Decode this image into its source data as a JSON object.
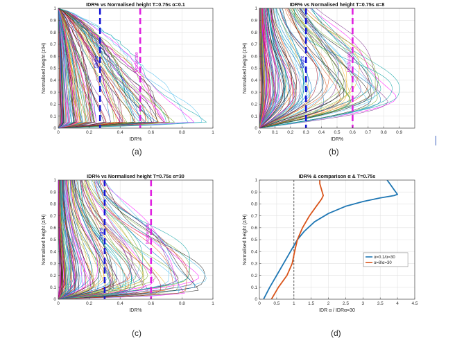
{
  "captions": [
    "(a)",
    "(b)",
    "(c)",
    "(d)"
  ],
  "colors": {
    "slight": "#1515d6",
    "moderate": "#e020e0",
    "series_blue": "#1f77b4",
    "series_orange": "#d95319",
    "palette": [
      "#0072bd",
      "#d95319",
      "#edb120",
      "#7e2f8e",
      "#77ac30",
      "#4dbeee",
      "#a2142f",
      "#1a1a1a",
      "#ff00ff",
      "#00a0a0"
    ]
  },
  "chart_data": [
    {
      "type": "line",
      "title": "IDR% vs Normalised height T=0.75s α=0.1",
      "xlabel": "IDR%",
      "ylabel": "Normalised height (z/H)",
      "xlim": [
        0,
        1
      ],
      "ylim": [
        0,
        1
      ],
      "xticks": [
        0,
        0.2,
        0.4,
        0.6,
        0.8,
        1
      ],
      "xtick_labels": [
        "0",
        "0.2",
        "0.4",
        "0.6",
        "0.8",
        "1"
      ],
      "yticks": [
        0,
        0.1,
        0.2,
        0.3,
        0.4,
        0.5,
        0.6,
        0.7,
        0.8,
        0.9,
        1
      ],
      "ytick_labels": [
        "0",
        "0.1",
        "0.2",
        "0.3",
        "0.4",
        "0.5",
        "0.6",
        "0.7",
        "0.8",
        "0.9",
        "1"
      ],
      "grid": true,
      "curve_count": 150,
      "curve_shape": "decreasing",
      "max_idr": 0.92,
      "thresholds": [
        {
          "name": "Slight",
          "x": 0.27
        },
        {
          "name": "Moderate",
          "x": 0.53
        }
      ]
    },
    {
      "type": "line",
      "title": "IDR% vs Normalised height T=0.75s α=8",
      "xlabel": "IDR%",
      "ylabel": "Normalised height (z/H)",
      "xlim": [
        0,
        1
      ],
      "ylim": [
        0,
        1
      ],
      "xticks": [
        0,
        0.1,
        0.2,
        0.3,
        0.4,
        0.5,
        0.6,
        0.7,
        0.8,
        0.9
      ],
      "xtick_labels": [
        "0",
        "0.1",
        "0.2",
        "0.3",
        "0.4",
        "0.5",
        "0.6",
        "0.7",
        "0.8",
        "0.9"
      ],
      "yticks": [
        0,
        0.1,
        0.2,
        0.3,
        0.4,
        0.5,
        0.6,
        0.7,
        0.8,
        0.9,
        1
      ],
      "ytick_labels": [
        "0",
        "0.1",
        "0.2",
        "0.3",
        "0.4",
        "0.5",
        "0.6",
        "0.7",
        "0.8",
        "0.9",
        "1"
      ],
      "grid": true,
      "curve_count": 150,
      "curve_shape": "bulge",
      "peak_height": 0.3,
      "max_idr": 0.87,
      "thresholds": [
        {
          "name": "Slight",
          "x": 0.3
        },
        {
          "name": "Moderate",
          "x": 0.6
        }
      ]
    },
    {
      "type": "line",
      "title": "IDR% vs Normalised height T=0.75s α=30",
      "xlabel": "IDR%",
      "ylabel": "Normalised height (z/H)",
      "xlim": [
        0,
        1
      ],
      "ylim": [
        0,
        1
      ],
      "xticks": [
        0,
        0.2,
        0.4,
        0.6,
        0.8,
        1
      ],
      "xtick_labels": [
        "0",
        "0.2",
        "0.4",
        "0.6",
        "0.8",
        "1"
      ],
      "yticks": [
        0,
        0.1,
        0.2,
        0.3,
        0.4,
        0.5,
        0.6,
        0.7,
        0.8,
        0.9,
        1
      ],
      "ytick_labels": [
        "0",
        "0.1",
        "0.2",
        "0.3",
        "0.4",
        "0.5",
        "0.6",
        "0.7",
        "0.8",
        "0.9",
        "1"
      ],
      "grid": true,
      "curve_count": 150,
      "curve_shape": "bulge",
      "peak_height": 0.12,
      "max_idr": 0.93,
      "thresholds": [
        {
          "name": "Slight",
          "x": 0.3
        },
        {
          "name": "Moderate",
          "x": 0.6
        }
      ]
    },
    {
      "type": "line",
      "title": "IDR% & comparison α & T=0.75s",
      "xlabel": "IDR α / IDRα=30",
      "ylabel": "Normalised height (z/H)",
      "xlim": [
        0,
        4.5
      ],
      "ylim": [
        0,
        1
      ],
      "xticks": [
        0,
        0.5,
        1,
        1.5,
        2,
        2.5,
        3,
        3.5,
        4,
        4.5
      ],
      "xtick_labels": [
        "0",
        "0.5",
        "1",
        "1.5",
        "2",
        "2.5",
        "3",
        "3.5",
        "4",
        "4.5"
      ],
      "yticks": [
        0,
        0.1,
        0.2,
        0.3,
        0.4,
        0.5,
        0.6,
        0.7,
        0.8,
        0.9,
        1
      ],
      "ytick_labels": [
        "0",
        "0.1",
        "0.2",
        "0.3",
        "0.4",
        "0.5",
        "0.6",
        "0.7",
        "0.8",
        "0.9",
        "1"
      ],
      "grid": true,
      "legend": "right",
      "reference_x": 1,
      "series": [
        {
          "name": "α=0.1/α=30",
          "color": "#1f77b4",
          "x": [
            0.12,
            0.3,
            0.6,
            0.9,
            1.1,
            1.3,
            1.6,
            2.0,
            2.5,
            3.0,
            3.5,
            3.9,
            4.0,
            3.9,
            3.8,
            3.7
          ],
          "y": [
            0.0,
            0.1,
            0.25,
            0.4,
            0.5,
            0.57,
            0.65,
            0.72,
            0.78,
            0.82,
            0.85,
            0.87,
            0.88,
            0.92,
            0.96,
            1.0
          ]
        },
        {
          "name": "α=8/α=30",
          "color": "#d95319",
          "x": [
            0.35,
            0.55,
            0.8,
            0.95,
            1.02,
            1.1,
            1.25,
            1.45,
            1.65,
            1.8,
            1.85,
            1.8,
            1.75,
            1.75
          ],
          "y": [
            0.0,
            0.1,
            0.2,
            0.3,
            0.4,
            0.5,
            0.6,
            0.7,
            0.78,
            0.84,
            0.87,
            0.92,
            0.97,
            1.0
          ]
        }
      ]
    }
  ]
}
